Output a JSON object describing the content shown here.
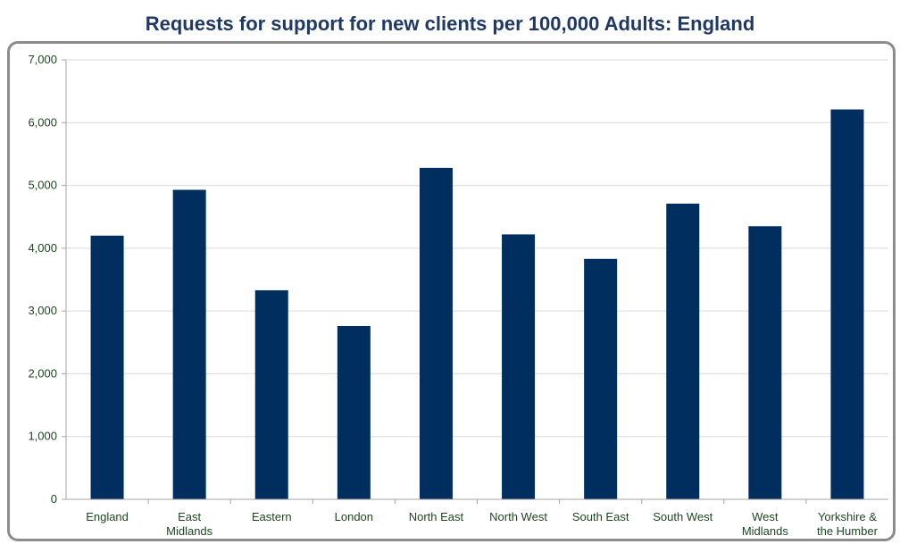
{
  "chart_data": {
    "type": "bar",
    "title": "Requests for support for new clients per 100,000 Adults: England",
    "categories": [
      [
        "England"
      ],
      [
        "East",
        "Midlands"
      ],
      [
        "Eastern"
      ],
      [
        "London"
      ],
      [
        "North East"
      ],
      [
        "North West"
      ],
      [
        "South East"
      ],
      [
        "South West"
      ],
      [
        "West",
        "Midlands"
      ],
      [
        "Yorkshire &",
        "the Humber"
      ]
    ],
    "values": [
      4200,
      4930,
      3330,
      2760,
      5280,
      4220,
      3830,
      4710,
      4350,
      6210
    ],
    "ylim": [
      0,
      7000
    ],
    "yticks": [
      "0",
      "1,000",
      "2,000",
      "3,000",
      "4,000",
      "5,000",
      "6,000",
      "7,000"
    ],
    "xlabel": "",
    "ylabel": "",
    "grid": true,
    "bar_color": "#002f5f"
  }
}
